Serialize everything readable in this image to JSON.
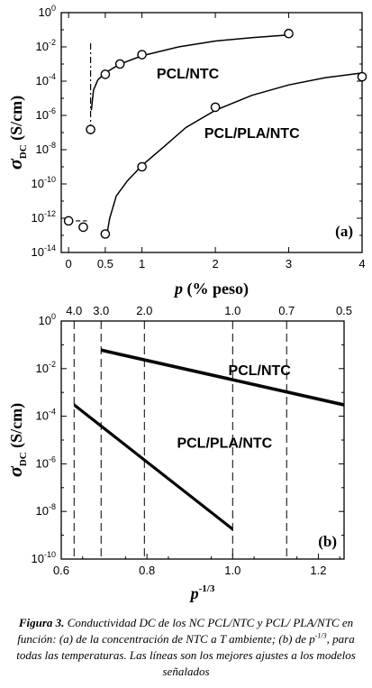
{
  "chart_data": [
    {
      "type": "scatter",
      "panel_label": "(a)",
      "xlabel_symbol": "p",
      "xlabel_rest": " (% peso)",
      "ylabel_symbol": "σ",
      "ylabel_sub": "DC",
      "ylabel_rest": " (S/cm)",
      "xlim": [
        -0.1,
        4.0
      ],
      "ylim_log10": [
        -14,
        0
      ],
      "x_ticks": [
        {
          "value": 0,
          "label": "0"
        },
        {
          "value": 0.5,
          "label": "0.5"
        },
        {
          "value": 1,
          "label": "1"
        },
        {
          "value": 2,
          "label": "2"
        },
        {
          "value": 3,
          "label": "3"
        },
        {
          "value": 4,
          "label": "4"
        }
      ],
      "y_ticks": [
        {
          "exp": 0,
          "base": "10",
          "sup": "0"
        },
        {
          "exp": -2,
          "base": "10",
          "sup": "-2"
        },
        {
          "exp": -4,
          "base": "10",
          "sup": "-4"
        },
        {
          "exp": -6,
          "base": "10",
          "sup": "-6"
        },
        {
          "exp": -8,
          "base": "10",
          "sup": "-8"
        },
        {
          "exp": -10,
          "base": "10",
          "sup": "-10"
        },
        {
          "exp": -12,
          "base": "10",
          "sup": "-12"
        },
        {
          "exp": -14,
          "base": "10",
          "sup": "-14"
        }
      ],
      "threshold_x": 0.3,
      "series": [
        {
          "name": "PCL/NTC",
          "points": [
            {
              "x": 0.0,
              "y": 7e-13
            },
            {
              "x": 0.2,
              "y": 3e-13
            },
            {
              "x": 0.3,
              "y": 1.5e-07
            },
            {
              "x": 0.5,
              "y": 0.00025
            },
            {
              "x": 0.7,
              "y": 0.001
            },
            {
              "x": 1.0,
              "y": 0.0035
            },
            {
              "x": 3.0,
              "y": 0.06
            }
          ],
          "fit_curve": [
            {
              "x": 0.31,
              "y": 2e-06
            },
            {
              "x": 0.34,
              "y": 3e-05
            },
            {
              "x": 0.4,
              "y": 0.00012
            },
            {
              "x": 0.5,
              "y": 0.0003
            },
            {
              "x": 0.7,
              "y": 0.001
            },
            {
              "x": 1.0,
              "y": 0.003
            },
            {
              "x": 1.5,
              "y": 0.01
            },
            {
              "x": 2.0,
              "y": 0.022
            },
            {
              "x": 2.5,
              "y": 0.035
            },
            {
              "x": 3.0,
              "y": 0.05
            }
          ]
        },
        {
          "name": "PCL/PLA/NTC",
          "points": [
            {
              "x": 0.5,
              "y": 1.2e-13
            },
            {
              "x": 1.0,
              "y": 1e-09
            },
            {
              "x": 2.0,
              "y": 3e-06
            },
            {
              "x": 4.0,
              "y": 0.00018
            }
          ],
          "fit_curve": [
            {
              "x": 0.52,
              "y": 1e-13
            },
            {
              "x": 0.56,
              "y": 1e-12
            },
            {
              "x": 0.65,
              "y": 2e-11
            },
            {
              "x": 0.8,
              "y": 1.5e-10
            },
            {
              "x": 1.0,
              "y": 1.2e-09
            },
            {
              "x": 1.3,
              "y": 1.5e-08
            },
            {
              "x": 1.6,
              "y": 2e-07
            },
            {
              "x": 2.0,
              "y": 2e-06
            },
            {
              "x": 2.5,
              "y": 1.5e-05
            },
            {
              "x": 3.0,
              "y": 6e-05
            },
            {
              "x": 3.5,
              "y": 0.00016
            },
            {
              "x": 4.0,
              "y": 0.0003
            }
          ]
        }
      ],
      "baseline_segment": [
        {
          "x": 0.0,
          "y": 7e-13
        },
        {
          "x": 0.25,
          "y": 7e-13
        }
      ],
      "series_labels": [
        {
          "text": "PCL/NTC",
          "x": 1.2,
          "y": 0.0003
        },
        {
          "text": "PCL/PLA/NTC",
          "x": 1.85,
          "y": 1e-07
        }
      ]
    },
    {
      "type": "line",
      "panel_label": "(b)",
      "xlabel_base": "p",
      "xlabel_sup": "-1/3",
      "ylabel_symbol": "σ",
      "ylabel_sub": "DC",
      "ylabel_rest": " (S/cm)",
      "xlim": [
        0.6,
        1.26
      ],
      "ylim_log10": [
        -10,
        0
      ],
      "x_ticks": [
        {
          "value": 0.6,
          "label": "0.6"
        },
        {
          "value": 0.8,
          "label": "0.8"
        },
        {
          "value": 1.0,
          "label": "1.0"
        },
        {
          "value": 1.2,
          "label": "1.2"
        }
      ],
      "top_ticks": [
        {
          "value": 0.63,
          "label": "4.0"
        },
        {
          "value": 0.693,
          "label": "3.0"
        },
        {
          "value": 0.794,
          "label": "2.0"
        },
        {
          "value": 1.0,
          "label": "1.0"
        },
        {
          "value": 1.126,
          "label": "0.7"
        },
        {
          "value": 1.26,
          "label": "0.5"
        }
      ],
      "y_ticks": [
        {
          "exp": 0,
          "base": "10",
          "sup": "0"
        },
        {
          "exp": -2,
          "base": "10",
          "sup": "-2"
        },
        {
          "exp": -4,
          "base": "10",
          "sup": "-4"
        },
        {
          "exp": -6,
          "base": "10",
          "sup": "-6"
        },
        {
          "exp": -8,
          "base": "10",
          "sup": "-8"
        },
        {
          "exp": -10,
          "base": "10",
          "sup": "-10"
        }
      ],
      "series": [
        {
          "name": "PCL/NTC",
          "line": [
            {
              "x": 0.693,
              "y": 0.06
            },
            {
              "x": 1.26,
              "y": 0.0003
            }
          ]
        },
        {
          "name": "PCL/PLA/NTC",
          "line": [
            {
              "x": 0.63,
              "y": 0.0003
            },
            {
              "x": 1.0,
              "y": 1.8e-09
            }
          ]
        }
      ],
      "series_labels": [
        {
          "text": "PCL/NTC",
          "x": 0.99,
          "y": 0.009
        },
        {
          "text": "PCL/PLA/NTC",
          "x": 0.87,
          "y": 8e-06
        }
      ]
    }
  ],
  "caption": {
    "label": "Figura 3.",
    "part1": " Conductividad DC de los NC PCL/NTC y PCL/ PLA/NTC en función: (a) de la concentración de NTC a T ambiente; (b) de p",
    "sup": "-1/3",
    "part2": ", para todas las temperaturas. Las líneas son los mejores ajustes a los modelos señalados"
  }
}
